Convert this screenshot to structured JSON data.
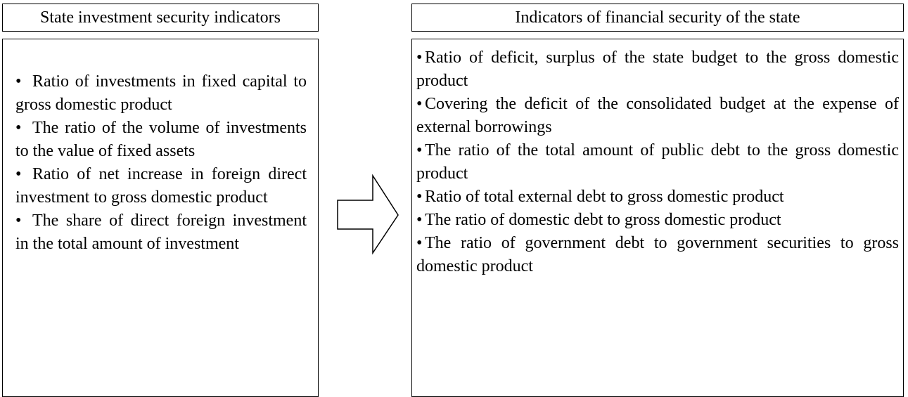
{
  "left": {
    "title": "State investment security indicators",
    "items": [
      "Ratio of investments in fixed capital to gross domestic product",
      "The ratio of the volume of investments to the value of fixed assets",
      "Ratio of net increase in foreign direct investment to gross domestic product",
      "The share of direct foreign investment in the total amount of investment"
    ]
  },
  "right": {
    "title": "Indicators of financial security of the state",
    "items": [
      "Ratio of deficit, surplus of the state budget to the gross domestic product",
      "Covering the deficit of the consolidated budget at the expense of external borrowings",
      "The ratio of the total amount of public debt to the gross domestic product",
      "Ratio of total external debt to gross domestic product",
      "The ratio of domestic debt to gross domestic product",
      "The ratio of government debt to government securities to gross domestic product"
    ]
  }
}
